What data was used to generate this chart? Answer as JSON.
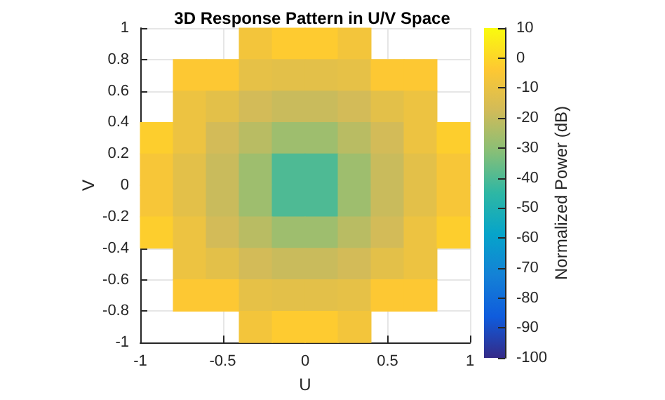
{
  "chart_data": {
    "type": "scatter",
    "title": "3D Response Pattern in U/V Space",
    "xlabel": "U",
    "ylabel": "V",
    "clabel": "Normalized Power (dB)",
    "x": [
      -0.3,
      -0.1,
      0.1,
      0.3,
      -0.7,
      -0.5,
      -0.3,
      -0.1,
      0.1,
      0.3,
      0.5,
      0.7,
      -0.7,
      -0.5,
      -0.3,
      -0.1,
      0.1,
      0.3,
      0.5,
      0.7,
      -0.9,
      -0.7,
      -0.5,
      -0.3,
      -0.1,
      0.1,
      0.3,
      0.5,
      0.7,
      0.9,
      -0.9,
      -0.7,
      -0.5,
      -0.3,
      -0.1,
      0.1,
      0.3,
      0.5,
      0.7,
      0.9,
      -0.9,
      -0.7,
      -0.5,
      -0.3,
      -0.1,
      0.1,
      0.3,
      0.5,
      0.7,
      0.9,
      -0.9,
      -0.7,
      -0.5,
      -0.3,
      -0.1,
      0.1,
      0.3,
      0.5,
      0.7,
      0.9,
      -0.7,
      -0.5,
      -0.3,
      -0.1,
      0.1,
      0.3,
      0.5,
      0.7,
      -0.7,
      -0.5,
      -0.3,
      -0.1,
      0.1,
      0.3,
      0.5,
      0.7,
      -0.3,
      -0.1,
      0.1,
      0.3
    ],
    "values": [
      0.9,
      0.9,
      0.9,
      0.9,
      0.7,
      0.7,
      0.7,
      0.7,
      0.7,
      0.7,
      0.7,
      0.7,
      0.5,
      0.5,
      0.5,
      0.5,
      0.5,
      0.5,
      0.5,
      0.5,
      0.3,
      0.3,
      0.3,
      0.3,
      0.3,
      0.3,
      0.3,
      0.3,
      0.3,
      0.3,
      0.1,
      0.1,
      0.1,
      0.1,
      0.1,
      0.1,
      0.1,
      0.1,
      0.1,
      0.1,
      -0.1,
      -0.1,
      -0.1,
      -0.1,
      -0.1,
      -0.1,
      -0.1,
      -0.1,
      -0.1,
      -0.1,
      -0.3,
      -0.3,
      -0.3,
      -0.3,
      -0.3,
      -0.3,
      -0.3,
      -0.3,
      -0.3,
      -0.3,
      -0.5,
      -0.5,
      -0.5,
      -0.5,
      -0.5,
      -0.5,
      -0.5,
      -0.5,
      -0.7,
      -0.7,
      -0.7,
      -0.7,
      -0.7,
      -0.7,
      -0.7,
      -0.7,
      -0.9,
      -0.9,
      -0.9,
      -0.9
    ],
    "cvalues": [
      -7,
      -3,
      -3,
      -7,
      -4,
      -4,
      -11,
      -12,
      -12,
      -11,
      -4,
      -4,
      -9,
      -12,
      -17,
      -19,
      -19,
      -17,
      -12,
      -9,
      -2,
      -9,
      -17,
      -22,
      -27,
      -27,
      -22,
      -17,
      -9,
      -2,
      -6,
      -12,
      -19,
      -27,
      -40,
      -40,
      -27,
      -19,
      -12,
      -6,
      -6,
      -12,
      -19,
      -27,
      -40,
      -40,
      -27,
      -19,
      -12,
      -6,
      -2,
      -9,
      -17,
      -22,
      -27,
      -27,
      -22,
      -17,
      -9,
      -2,
      -9,
      -12,
      -17,
      -19,
      -19,
      -17,
      -12,
      -9,
      -4,
      -4,
      -11,
      -12,
      -12,
      -11,
      -4,
      -4,
      -7,
      -3,
      -3,
      -7
    ],
    "xlim": [
      -1,
      1
    ],
    "xticks": [
      -1,
      -0.5,
      0,
      0.5,
      1
    ],
    "ylim": [
      -1,
      1
    ],
    "yticks": [
      -1,
      -0.8,
      -0.6,
      -0.4,
      -0.2,
      0,
      0.2,
      0.4,
      0.6,
      0.8,
      1
    ],
    "clim": [
      -100,
      10
    ],
    "cticks": [
      -100,
      -90,
      -80,
      -70,
      -60,
      -50,
      -40,
      -30,
      -20,
      -10,
      0,
      10
    ],
    "grid": true,
    "marker": "square"
  }
}
